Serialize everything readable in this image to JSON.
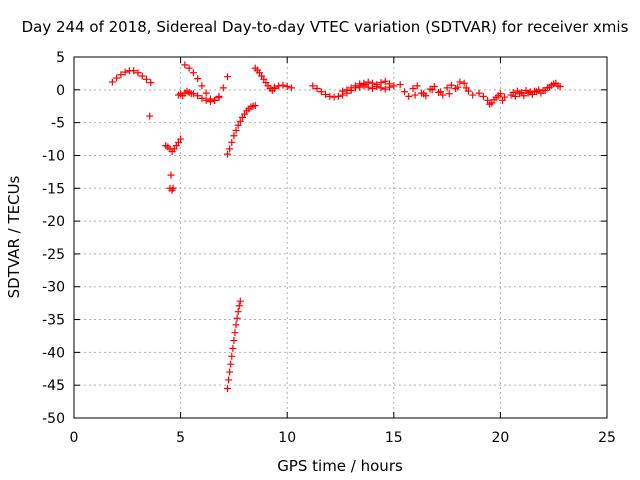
{
  "chart_data": {
    "type": "scatter",
    "title": "Day 244 of 2018, Sidereal Day-to-day VTEC variation (SDTVAR) for receiver xmis",
    "xlabel": "GPS time / hours",
    "ylabel": "SDTVAR / TECUs",
    "xlim": [
      0,
      25
    ],
    "ylim": [
      -50,
      5
    ],
    "xticks": [
      0,
      5,
      10,
      15,
      20,
      25
    ],
    "yticks": [
      5,
      0,
      -5,
      -10,
      -15,
      -20,
      -25,
      -30,
      -35,
      -40,
      -45,
      -50
    ],
    "xtick_labels": [
      "0",
      "5",
      "10",
      "15",
      "20",
      "25"
    ],
    "ytick_labels": [
      "5",
      "0",
      "-5",
      "-10",
      "-15",
      "-20",
      "-25",
      "-30",
      "-35",
      "-40",
      "-45",
      "-50"
    ],
    "grid": true,
    "marker": "+",
    "color": "#ff0000",
    "segments": [
      {
        "x": [
          1.8,
          2.0,
          2.2,
          2.4,
          2.6,
          2.8,
          3.0,
          3.2,
          3.4,
          3.6
        ],
        "y": [
          1.2,
          1.8,
          2.3,
          2.7,
          2.9,
          2.9,
          2.6,
          2.1,
          1.6,
          1.1
        ]
      },
      {
        "x": [
          3.55
        ],
        "y": [
          -4.0
        ]
      },
      {
        "x": [
          4.3,
          4.4,
          4.5,
          4.6,
          4.7,
          4.8,
          4.9,
          5.0
        ],
        "y": [
          -8.5,
          -8.7,
          -9.0,
          -9.4,
          -9.0,
          -8.5,
          -8.0,
          -7.5
        ]
      },
      {
        "x": [
          4.55
        ],
        "y": [
          -13.0
        ]
      },
      {
        "x": [
          4.5,
          4.6,
          4.65
        ],
        "y": [
          -15.0,
          -15.3,
          -15.0
        ]
      },
      {
        "x": [
          4.9,
          5.0,
          5.1,
          5.2,
          5.3,
          5.4,
          5.5
        ],
        "y": [
          -0.8,
          -0.6,
          -0.9,
          -0.5,
          -0.2,
          -0.4,
          -0.6
        ]
      },
      {
        "x": [
          5.2,
          5.4,
          5.6,
          5.8,
          6.0,
          6.2,
          6.4,
          6.6,
          6.8,
          7.0,
          7.2
        ],
        "y": [
          3.8,
          3.3,
          2.6,
          1.7,
          0.6,
          -0.5,
          -1.4,
          -1.6,
          -1.0,
          0.3,
          2.0
        ]
      },
      {
        "x": [
          5.6,
          5.8,
          6.0,
          6.2,
          6.4,
          6.6,
          6.8
        ],
        "y": [
          -0.6,
          -0.9,
          -1.3,
          -1.6,
          -1.8,
          -1.6,
          -1.2
        ]
      },
      {
        "x": [
          7.2,
          7.3,
          7.4,
          7.5,
          7.6,
          7.7,
          7.8,
          7.9,
          8.0,
          8.1,
          8.2,
          8.3,
          8.4,
          8.5
        ],
        "y": [
          -9.8,
          -9.0,
          -8.0,
          -7.0,
          -6.2,
          -5.4,
          -4.8,
          -4.2,
          -3.7,
          -3.2,
          -2.9,
          -2.6,
          -2.5,
          -2.4
        ]
      },
      {
        "x": [
          7.2,
          7.25,
          7.3,
          7.35,
          7.4,
          7.45,
          7.5,
          7.55,
          7.6,
          7.65,
          7.7,
          7.75,
          7.8
        ],
        "y": [
          -45.5,
          -44.2,
          -43.0,
          -41.8,
          -40.6,
          -39.4,
          -38.2,
          -37.0,
          -35.8,
          -34.8,
          -33.8,
          -32.9,
          -32.2
        ]
      },
      {
        "x": [
          8.5,
          8.6,
          8.7,
          8.8,
          8.9,
          9.0,
          9.1,
          9.2,
          9.3,
          9.4
        ],
        "y": [
          3.3,
          3.0,
          2.6,
          2.1,
          1.6,
          1.1,
          0.6,
          0.2,
          -0.1,
          0.2
        ]
      },
      {
        "x": [
          9.4,
          9.6,
          9.8,
          10.0,
          10.2
        ],
        "y": [
          0.4,
          0.6,
          0.7,
          0.5,
          0.3
        ]
      },
      {
        "x": [
          11.2,
          11.4,
          11.6,
          11.8,
          12.0,
          12.2,
          12.4,
          12.6,
          12.8,
          13.0,
          13.2,
          13.4,
          13.6
        ],
        "y": [
          0.6,
          0.2,
          -0.3,
          -0.7,
          -1.0,
          -1.1,
          -1.0,
          -0.8,
          -0.5,
          -0.1,
          0.3,
          0.6,
          0.8
        ]
      },
      {
        "x": [
          12.6,
          12.8,
          13.0,
          13.2,
          13.4,
          13.6,
          13.8,
          14.0,
          14.2,
          14.4,
          14.6,
          14.8,
          15.0
        ],
        "y": [
          -0.2,
          0.0,
          0.3,
          0.6,
          0.9,
          1.0,
          1.2,
          1.0,
          0.8,
          1.1,
          1.3,
          0.9,
          0.6
        ]
      },
      {
        "x": [
          13.4,
          13.6,
          13.8,
          14.0,
          14.2,
          14.4,
          14.6,
          14.8
        ],
        "y": [
          0.4,
          0.6,
          0.4,
          0.2,
          0.5,
          0.3,
          0.1,
          0.4
        ]
      },
      {
        "x": [
          15.3,
          15.5,
          15.7,
          15.9,
          16.1,
          16.3,
          16.5,
          16.7,
          16.9,
          17.1,
          17.3,
          17.5,
          17.7,
          17.9,
          18.1,
          18.3,
          18.5,
          18.7
        ],
        "y": [
          0.8,
          -0.3,
          -1.0,
          0.2,
          0.6,
          -0.5,
          -0.9,
          0.1,
          0.5,
          -0.4,
          -0.8,
          0.3,
          0.7,
          0.2,
          1.2,
          1.0,
          -0.2,
          -0.8
        ]
      },
      {
        "x": [
          16.0,
          16.4,
          16.8,
          17.2,
          17.6,
          18.0,
          18.4
        ],
        "y": [
          -0.8,
          -0.6,
          0.0,
          -0.3,
          -0.6,
          0.4,
          0.3
        ]
      },
      {
        "x": [
          19.0,
          19.2,
          19.4,
          19.6,
          19.8,
          20.0,
          20.2
        ],
        "y": [
          -0.5,
          -1.0,
          -1.6,
          -2.0,
          -1.2,
          -0.6,
          -1.1
        ]
      },
      {
        "x": [
          19.5,
          19.7,
          19.9,
          20.1
        ],
        "y": [
          -2.2,
          -1.5,
          -0.9,
          -1.6
        ]
      },
      {
        "x": [
          20.5,
          20.7,
          20.9,
          21.1,
          21.3,
          21.5,
          21.7,
          21.9,
          22.1,
          22.3,
          22.5,
          22.7
        ],
        "y": [
          -0.8,
          -1.0,
          -0.6,
          -0.9,
          -0.5,
          -0.7,
          -0.3,
          -0.5,
          -0.1,
          0.4,
          0.9,
          0.6
        ]
      },
      {
        "x": [
          20.6,
          20.8,
          21.0,
          21.2,
          21.4,
          21.6,
          21.8,
          22.0,
          22.2,
          22.4,
          22.6,
          22.8
        ],
        "y": [
          -0.4,
          -0.2,
          -0.4,
          -0.1,
          -0.3,
          -0.2,
          0.0,
          -0.1,
          0.3,
          0.7,
          1.0,
          0.5
        ]
      }
    ]
  }
}
